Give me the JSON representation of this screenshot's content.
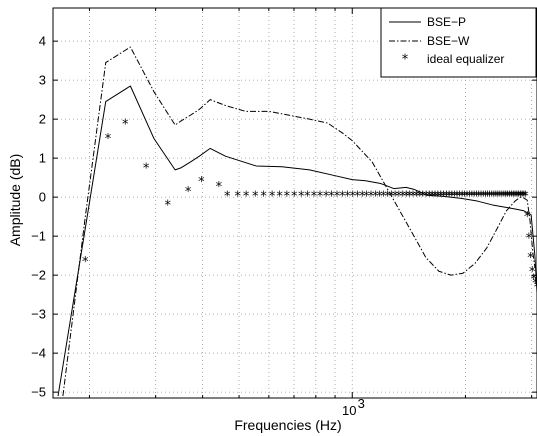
{
  "chart_data": {
    "type": "line",
    "xlabel": "Frequencies (Hz)",
    "ylabel": "Amplitude (dB)",
    "x_scale": "log",
    "xlim": [
      160,
      3100
    ],
    "ylim": [
      -5.15,
      4.85
    ],
    "y_ticks": [
      -5,
      -4,
      -3,
      -2,
      -1,
      0,
      1,
      2,
      3,
      4
    ],
    "y_tick_labels": [
      "−5",
      "−4",
      "−3",
      "−2",
      "−1",
      "0",
      "1",
      "2",
      "3",
      "4"
    ],
    "x_major_ticks": [
      1000
    ],
    "x_major_tick_labels": [
      {
        "base": "10",
        "exp": "3"
      }
    ],
    "grid": true,
    "legend_position": "top-right",
    "series": [
      {
        "name": "BSE−P",
        "style": "solid",
        "x": [
          165,
          195,
          221,
          257,
          297,
          338,
          350,
          371,
          392,
          419,
          460,
          555,
          650,
          770,
          900,
          1000,
          1085,
          1190,
          1290,
          1390,
          1460,
          1580,
          1750,
          1950,
          2150,
          2360,
          2520,
          2700,
          2860,
          2920,
          2990,
          3060,
          3100
        ],
        "values": [
          -5.1,
          -0.8,
          2.45,
          2.85,
          1.5,
          0.7,
          0.75,
          0.9,
          1.05,
          1.25,
          1.05,
          0.8,
          0.78,
          0.7,
          0.55,
          0.45,
          0.42,
          0.35,
          0.22,
          0.25,
          0.2,
          0.05,
          0.02,
          -0.03,
          -0.1,
          -0.2,
          -0.25,
          -0.3,
          -0.35,
          -0.4,
          -0.45,
          -1.5,
          -2.45
        ]
      },
      {
        "name": "BSE−W",
        "style": "dashdot",
        "x": [
          170,
          195,
          221,
          257,
          297,
          338,
          350,
          371,
          392,
          419,
          460,
          520,
          600,
          680,
          770,
          860,
          940,
          1000,
          1130,
          1320,
          1450,
          1570,
          1700,
          1830,
          1970,
          2120,
          2280,
          2430,
          2570,
          2710,
          2800,
          2860,
          2920,
          2970,
          3020,
          3060
        ],
        "values": [
          -5.1,
          -0.5,
          3.45,
          3.85,
          2.7,
          1.85,
          1.95,
          2.1,
          2.25,
          2.5,
          2.35,
          2.2,
          2.2,
          2.1,
          2.0,
          1.9,
          1.65,
          1.45,
          0.9,
          -0.25,
          -0.95,
          -1.55,
          -1.9,
          -2.0,
          -1.95,
          -1.7,
          -1.3,
          -0.8,
          -0.35,
          -0.1,
          0.0,
          -0.02,
          -0.08,
          -0.6,
          -1.4,
          -1.8
        ]
      },
      {
        "name": "ideal equalizer",
        "style": "markers",
        "x": [
          195,
          224,
          249,
          283,
          323,
          366,
          397,
          442,
          465,
          496,
          522,
          552,
          581,
          612,
          641,
          670,
          701,
          732,
          760,
          791,
          821,
          852,
          880,
          911,
          941,
          972,
          1003,
          1032,
          1063,
          1090,
          1122,
          1152,
          1182,
          1211,
          1242,
          1271,
          1300,
          1330,
          1362,
          1392,
          1420,
          1451,
          1481,
          1512,
          1540,
          1572,
          1602,
          1631,
          1660,
          1690,
          1720,
          1750,
          1780,
          1810,
          1840,
          1870,
          1900,
          1930,
          1960,
          1990,
          2020,
          2050,
          2080,
          2110,
          2140,
          2170,
          2200,
          2230,
          2260,
          2290,
          2320,
          2350,
          2380,
          2410,
          2440,
          2470,
          2500,
          2530,
          2560,
          2590,
          2620,
          2650,
          2680,
          2710,
          2740,
          2770,
          2800,
          2830,
          2860,
          2890,
          2920,
          2950,
          2980,
          3010,
          3040,
          3070,
          3100
        ],
        "values": [
          -1.65,
          1.5,
          1.88,
          0.75,
          -0.2,
          0.15,
          0.4,
          0.27,
          0.03,
          0.03,
          0.03,
          0.03,
          0.03,
          0.03,
          0.03,
          0.03,
          0.03,
          0.03,
          0.03,
          0.03,
          0.03,
          0.03,
          0.03,
          0.03,
          0.03,
          0.03,
          0.03,
          0.03,
          0.03,
          0.03,
          0.03,
          0.03,
          0.03,
          0.03,
          0.03,
          0.03,
          0.03,
          0.03,
          0.03,
          0.03,
          0.03,
          0.03,
          0.03,
          0.03,
          0.03,
          0.03,
          0.03,
          0.03,
          0.03,
          0.03,
          0.03,
          0.03,
          0.03,
          0.03,
          0.03,
          0.03,
          0.03,
          0.03,
          0.03,
          0.03,
          0.03,
          0.03,
          0.03,
          0.03,
          0.03,
          0.03,
          0.03,
          0.03,
          0.03,
          0.03,
          0.03,
          0.03,
          0.03,
          0.03,
          0.03,
          0.03,
          0.03,
          0.03,
          0.03,
          0.03,
          0.03,
          0.03,
          0.03,
          0.03,
          0.03,
          0.03,
          0.03,
          0.03,
          0.03,
          0.03,
          -0.5,
          -1.05,
          -1.55,
          -1.9,
          -2.1,
          -2.2,
          -2.3
        ]
      }
    ]
  }
}
